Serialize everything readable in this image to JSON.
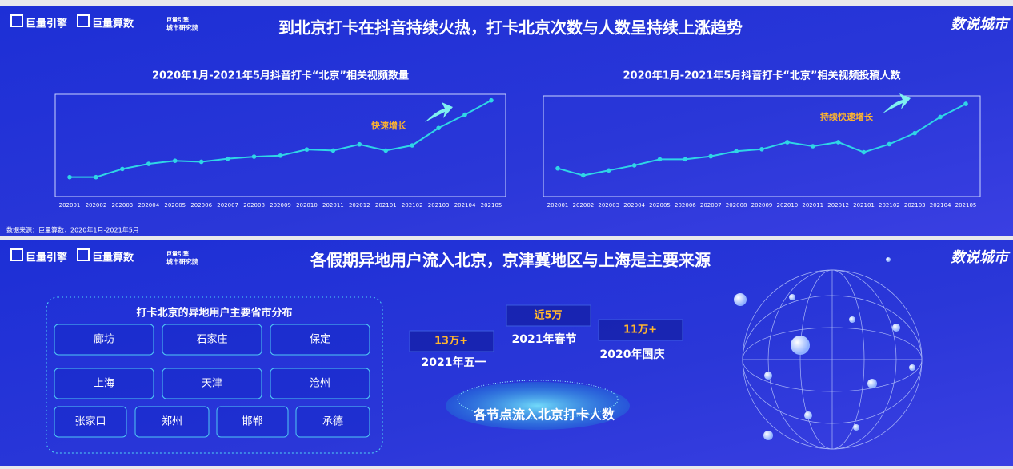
{
  "header": {
    "logos": [
      "巨量引擎",
      "巨量算数",
      "巨量引擎",
      "城市研究院"
    ],
    "brand": "数说城市"
  },
  "title": "到北京打卡在抖音持续火热，打卡北京次数与人数呈持续上涨趋势",
  "chart_data": [
    {
      "type": "line",
      "title": "2020年1月-2021年5月抖音打卡“北京”相关视频数量",
      "categories": [
        "202001",
        "202002",
        "202003",
        "202004",
        "202005",
        "202006",
        "202007",
        "202008",
        "202009",
        "202010",
        "202011",
        "202012",
        "202101",
        "202102",
        "202103",
        "202104",
        "202105"
      ],
      "series": [
        {
          "color": "#2fd6e6",
          "values": [
            19,
            19,
            27,
            32,
            35,
            34,
            37,
            39,
            40,
            46,
            45,
            51,
            45,
            50,
            67,
            80,
            94
          ]
        }
      ],
      "ylim": [
        0,
        100
      ],
      "annotation": "快速增长"
    },
    {
      "type": "line",
      "title": "2020年1月-2021年5月抖音打卡“北京”相关视频投稿人数",
      "categories": [
        "202001",
        "202002",
        "202003",
        "202004",
        "202005",
        "202006",
        "202007",
        "202008",
        "202009",
        "202010",
        "202011",
        "202012",
        "202101",
        "202102",
        "202103",
        "202104",
        "202105"
      ],
      "series": [
        {
          "color": "#2fd6e6",
          "values": [
            28,
            21,
            26,
            31,
            37,
            37,
            40,
            45,
            47,
            54,
            50,
            54,
            44,
            52,
            63,
            79,
            92
          ]
        }
      ],
      "ylim": [
        0,
        100
      ],
      "annotation": "持续快速增长"
    }
  ],
  "source": "数据来源：巨量算数，2020年1月-2021年5月",
  "panel2": {
    "title": "各假期异地用户流入北京，京津冀地区与上海是主要来源",
    "region_box": {
      "title": "打卡北京的异地用户主要省市分布",
      "cities": [
        "廊坊",
        "石家庄",
        "保定",
        "上海",
        "天津",
        "沧州",
        "张家口",
        "郑州",
        "邯郸",
        "承德"
      ]
    },
    "holidays": [
      {
        "value": "13万+",
        "label": "2021年五一"
      },
      {
        "value": "近5万",
        "label": "2021年春节"
      },
      {
        "value": "11万+",
        "label": "2020年国庆"
      }
    ],
    "caption": "各节点流入北京打卡人数"
  }
}
